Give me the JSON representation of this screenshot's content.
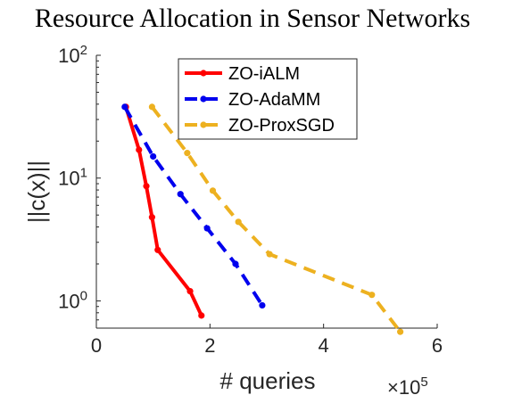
{
  "chart_data": {
    "type": "line",
    "title": "Resource Allocation in Sensor Networks",
    "xlabel": "# queries",
    "ylabel": "||c(x)||",
    "x_exponent_label": "×10",
    "x_exponent": "5",
    "xlim": [
      0,
      6
    ],
    "ylim": [
      0.6,
      100
    ],
    "yscale": "log",
    "xticks": [
      0,
      2,
      4,
      6
    ],
    "xtick_labels": [
      "0",
      "2",
      "4",
      "6"
    ],
    "yticks": [
      1,
      10,
      100
    ],
    "ytick_bases": [
      "10",
      "10",
      "10"
    ],
    "ytick_exponents": [
      "0",
      "1",
      "2"
    ],
    "grid": false,
    "legend_position": "top-right",
    "series": [
      {
        "name": "ZO-iALM",
        "color": "#ff0000",
        "dash": "solid",
        "x": [
          0.52,
          0.75,
          0.88,
          0.98,
          1.08,
          1.65,
          1.85
        ],
        "y": [
          38,
          17,
          8.6,
          4.8,
          2.6,
          1.2,
          0.76
        ]
      },
      {
        "name": "ZO-AdaMM",
        "color": "#0000ee",
        "dash": "dashed",
        "x": [
          0.5,
          1.0,
          1.48,
          1.95,
          2.45,
          2.92
        ],
        "y": [
          38,
          15,
          7.4,
          3.9,
          2.0,
          0.92
        ]
      },
      {
        "name": "ZO-ProxSGD",
        "color": "#edb120",
        "dash": "dashed",
        "x": [
          0.98,
          1.6,
          2.05,
          2.5,
          3.05,
          4.85,
          5.35
        ],
        "y": [
          38,
          16,
          7.9,
          4.4,
          2.4,
          1.12,
          0.56
        ]
      }
    ]
  }
}
